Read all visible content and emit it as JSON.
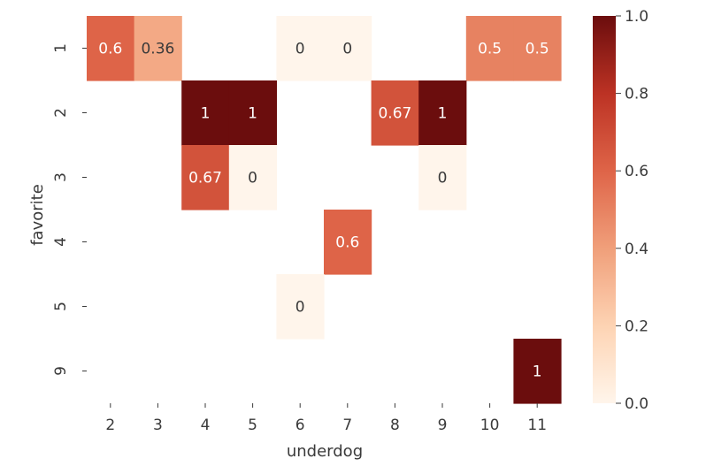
{
  "chart_data": {
    "type": "heatmap",
    "xlabel": "underdog",
    "ylabel": "favorite",
    "x_categories": [
      "2",
      "3",
      "4",
      "5",
      "6",
      "7",
      "8",
      "9",
      "10",
      "11"
    ],
    "y_categories": [
      "1",
      "2",
      "3",
      "4",
      "5",
      "9"
    ],
    "cells": [
      {
        "x": "2",
        "y": "1",
        "value": 0.6,
        "label": "0.6"
      },
      {
        "x": "3",
        "y": "1",
        "value": 0.36,
        "label": "0.36"
      },
      {
        "x": "6",
        "y": "1",
        "value": 0,
        "label": "0"
      },
      {
        "x": "7",
        "y": "1",
        "value": 0,
        "label": "0"
      },
      {
        "x": "10",
        "y": "1",
        "value": 0.5,
        "label": "0.5"
      },
      {
        "x": "11",
        "y": "1",
        "value": 0.5,
        "label": "0.5"
      },
      {
        "x": "4",
        "y": "2",
        "value": 1,
        "label": "1"
      },
      {
        "x": "5",
        "y": "2",
        "value": 1,
        "label": "1"
      },
      {
        "x": "8",
        "y": "2",
        "value": 0.67,
        "label": "0.67"
      },
      {
        "x": "9",
        "y": "2",
        "value": 1,
        "label": "1"
      },
      {
        "x": "4",
        "y": "3",
        "value": 0.67,
        "label": "0.67"
      },
      {
        "x": "5",
        "y": "3",
        "value": 0,
        "label": "0"
      },
      {
        "x": "9",
        "y": "3",
        "value": 0,
        "label": "0"
      },
      {
        "x": "7",
        "y": "4",
        "value": 0.6,
        "label": "0.6"
      },
      {
        "x": "6",
        "y": "5",
        "value": 0,
        "label": "0"
      },
      {
        "x": "11",
        "y": "9",
        "value": 1,
        "label": "1"
      }
    ],
    "colorbar": {
      "range": [
        0.0,
        1.0
      ],
      "ticks": [
        "0.0",
        "0.2",
        "0.4",
        "0.6",
        "0.8",
        "1.0"
      ]
    },
    "colormap": [
      "#fff5eb",
      "#fdd3b3",
      "#f09f7a",
      "#de6448",
      "#bc3224",
      "#6b0d0d"
    ],
    "grid": false
  }
}
